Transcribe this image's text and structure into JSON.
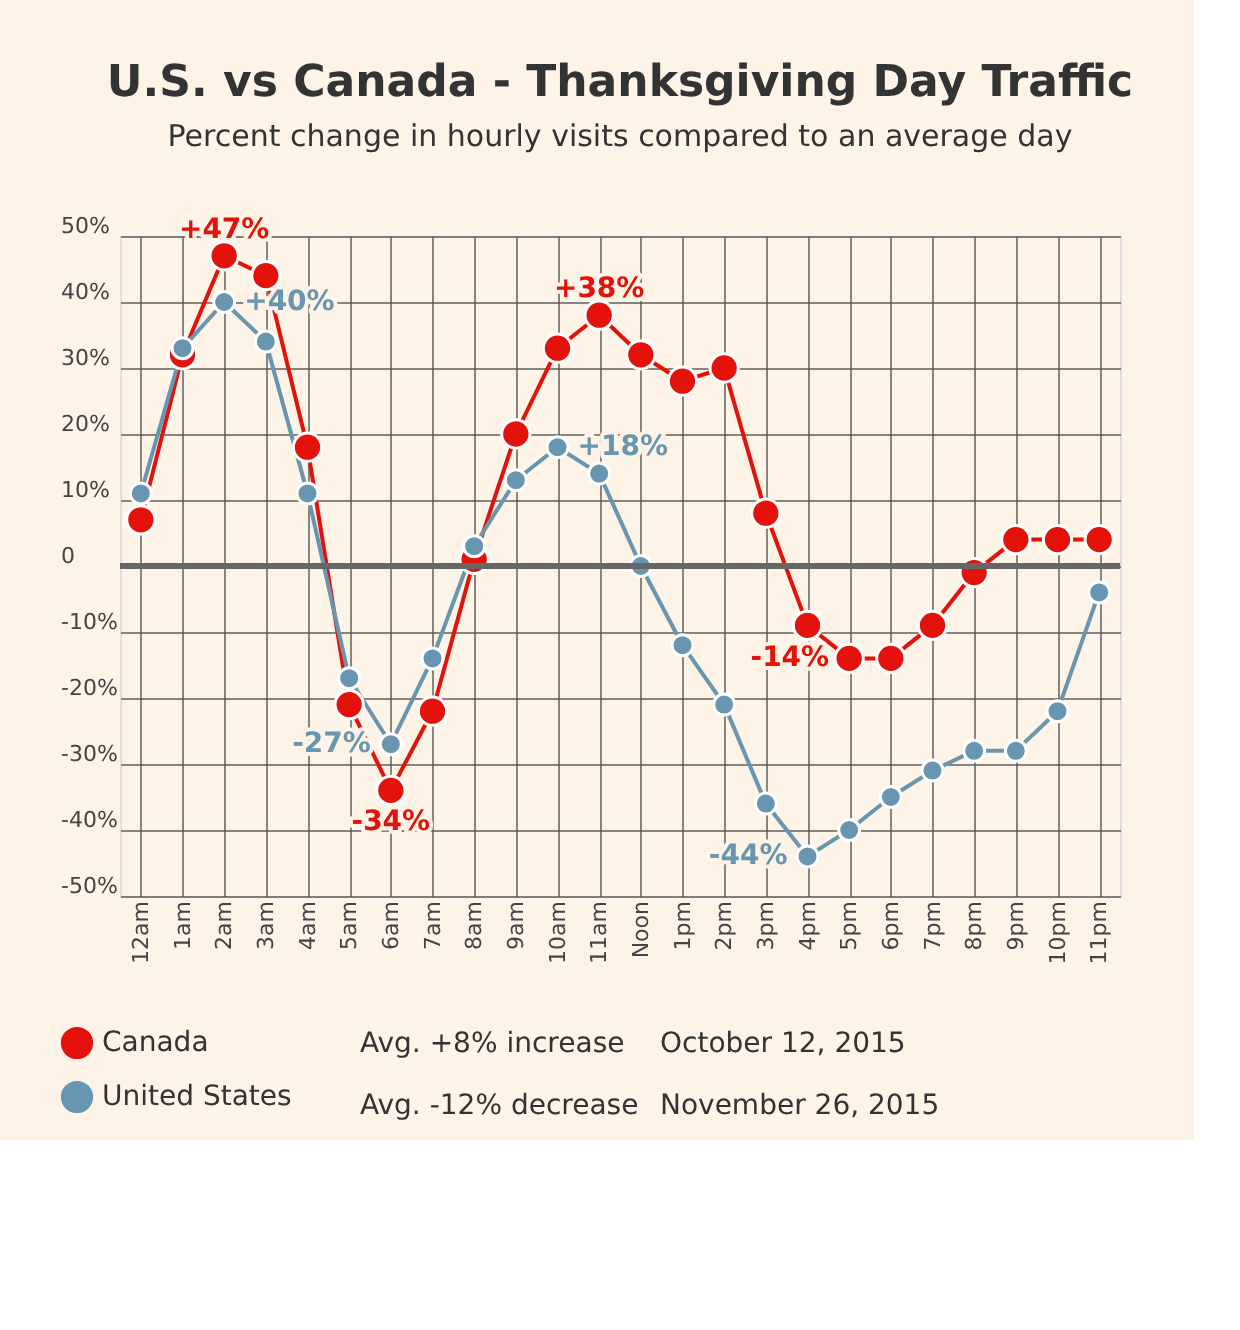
{
  "chart_data": {
    "type": "line",
    "title": "U.S. vs Canada - Thanksgiving Day Traffic",
    "subtitle": "Percent change in hourly visits compared to an average day",
    "categories": [
      "12am",
      "1am",
      "2am",
      "3am",
      "4am",
      "5am",
      "6am",
      "7am",
      "8am",
      "9am",
      "10am",
      "11am",
      "Noon",
      "1pm",
      "2pm",
      "3pm",
      "4pm",
      "5pm",
      "6pm",
      "7pm",
      "8pm",
      "9pm",
      "10pm",
      "11pm"
    ],
    "series": [
      {
        "name": "Canada",
        "color": "#e3120b",
        "values": [
          7,
          32,
          47,
          44,
          18,
          -21,
          -34,
          -22,
          1,
          20,
          33,
          38,
          32,
          28,
          30,
          8,
          -9,
          -14,
          -14,
          -9,
          -1,
          4,
          4,
          4
        ]
      },
      {
        "name": "United States",
        "color": "#6896b0",
        "values": [
          11,
          33,
          40,
          34,
          11,
          -17,
          -27,
          -14,
          3,
          13,
          18,
          14,
          0,
          -12,
          -21,
          -36,
          -44,
          -40,
          -35,
          -31,
          -28,
          -28,
          -22,
          -4
        ]
      }
    ],
    "ylim": [
      -50,
      50
    ],
    "yticks": [
      {
        "value": -50,
        "label": "-50%"
      },
      {
        "value": -40,
        "label": "-40%"
      },
      {
        "value": -30,
        "label": "-30%"
      },
      {
        "value": -20,
        "label": "-20%"
      },
      {
        "value": -10,
        "label": "-10%"
      },
      {
        "value": 0,
        "label": "0"
      },
      {
        "value": 10,
        "label": "10%"
      },
      {
        "value": 20,
        "label": "20%"
      },
      {
        "value": 30,
        "label": "30%"
      },
      {
        "value": 40,
        "label": "40%"
      },
      {
        "value": 50,
        "label": "50%"
      }
    ],
    "ref_lines": [
      {
        "axis": "y",
        "value": 0,
        "color": "#666666"
      }
    ],
    "annotations": [
      {
        "text": "+47%",
        "x": "2am",
        "y": 47
      },
      {
        "text": "+40%",
        "x": "2am",
        "y": 40
      },
      {
        "text": "-27%",
        "x": "6am",
        "y": -27
      },
      {
        "text": "-34%",
        "x": "6am",
        "y": -34
      },
      {
        "text": "+38%",
        "x": "11am",
        "y": 38
      },
      {
        "text": "+18%",
        "x": "10am",
        "y": 18
      },
      {
        "text": "-44%",
        "x": "4pm",
        "y": -44
      },
      {
        "text": "-14%",
        "x": "5pm",
        "y": -14
      },
      "Avg. +8% increase",
      "October 12, 2015",
      "Avg. -12% decrease",
      "November 26, 2015"
    ],
    "grid": true,
    "legend": "bottom left",
    "marker": "circle",
    "line_style": "solid"
  }
}
